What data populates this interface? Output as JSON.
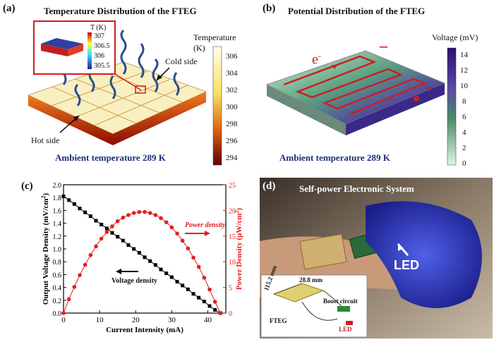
{
  "panel_a": {
    "label": "(a)",
    "title": "Temperature Distribution of the FTEG",
    "inset_title": "T (K)",
    "inset_ticks": [
      "307",
      "306.5",
      "306",
      "305.5"
    ],
    "colorbar_title": "Temperature (K)",
    "colorbar_ticks": [
      "306",
      "304",
      "302",
      "300",
      "298",
      "296",
      "294"
    ],
    "cold_side": "Cold side",
    "hot_side": "Hot side",
    "caption": "Ambient temperature 289 K"
  },
  "panel_b": {
    "label": "(b)",
    "title": "Potential Distribution of the FTEG",
    "colorbar_title": "Voltage (mV)",
    "colorbar_ticks": [
      "14",
      "12",
      "10",
      "8",
      "6",
      "4",
      "2",
      "0"
    ],
    "electron": "e",
    "electron_sup": "-",
    "minus": "–",
    "plus": "+",
    "caption": "Ambient temperature 289 K"
  },
  "panel_c": {
    "label": "(c)",
    "annotation_power": "Power density",
    "annotation_voltage": "Voltage density"
  },
  "panel_d": {
    "label": "(d)",
    "title": "Self-power Electronic System",
    "led": "LED",
    "inset_dim1": "115.2 mm",
    "inset_dim2": "28.8 mm",
    "inset_boost": "Boost circuit",
    "inset_fteg": "FTEG",
    "inset_led": "LED"
  },
  "chart_data": {
    "type": "scatter",
    "xlabel": "Current Intensity (mA)",
    "ylabel_left": "Output Voltage Density (mV/cm",
    "ylabel_left_sup": "2",
    "ylabel_left_end": ")",
    "ylabel_right": "Power Density (μW/cm",
    "ylabel_right_sup": "2",
    "ylabel_right_end": ")",
    "xlim": [
      0,
      45
    ],
    "ylim_left": [
      0,
      2.0
    ],
    "ylim_right": [
      0,
      25
    ],
    "x_ticks": [
      0,
      10,
      20,
      30,
      40
    ],
    "y_left_ticks": [
      0.0,
      0.2,
      0.4,
      0.6,
      0.8,
      1.0,
      1.2,
      1.4,
      1.6,
      1.8,
      2.0
    ],
    "y_right_ticks": [
      0,
      5,
      10,
      15,
      20,
      25
    ],
    "series": [
      {
        "name": "Voltage density",
        "axis": "left",
        "color": "#000000",
        "marker": "square",
        "x": [
          0,
          1.5,
          3,
          4.5,
          6,
          7.5,
          9,
          10.5,
          12,
          13.5,
          15,
          16.5,
          18,
          19.5,
          21,
          22.5,
          24,
          25.5,
          27,
          28.5,
          30,
          31.5,
          33,
          34.5,
          36,
          37.5,
          39,
          40.5,
          42,
          43.5
        ],
        "y": [
          1.82,
          1.76,
          1.7,
          1.63,
          1.57,
          1.51,
          1.44,
          1.38,
          1.32,
          1.25,
          1.19,
          1.13,
          1.06,
          1.0,
          0.94,
          0.87,
          0.81,
          0.75,
          0.68,
          0.62,
          0.56,
          0.49,
          0.43,
          0.37,
          0.3,
          0.24,
          0.18,
          0.11,
          0.05,
          0.0
        ]
      },
      {
        "name": "Power density",
        "axis": "right",
        "color": "#e02020",
        "marker": "circle",
        "x": [
          0,
          1.5,
          3,
          4.5,
          6,
          7.5,
          9,
          10.5,
          12,
          13.5,
          15,
          16.5,
          18,
          19.5,
          21,
          22.5,
          24,
          25.5,
          27,
          28.5,
          30,
          31.5,
          33,
          34.5,
          36,
          37.5,
          39,
          40.5,
          42,
          43.5
        ],
        "y": [
          0,
          2.7,
          5.1,
          7.4,
          9.4,
          11.3,
          13.0,
          14.5,
          15.8,
          16.9,
          17.9,
          18.6,
          19.1,
          19.5,
          19.7,
          19.7,
          19.5,
          19.1,
          18.5,
          17.7,
          16.7,
          15.5,
          14.1,
          12.6,
          10.8,
          9.0,
          6.9,
          4.6,
          2.2,
          0
        ]
      }
    ]
  },
  "colors": {
    "caption_blue": "#1c2f7a",
    "trace_red": "#e02020"
  }
}
